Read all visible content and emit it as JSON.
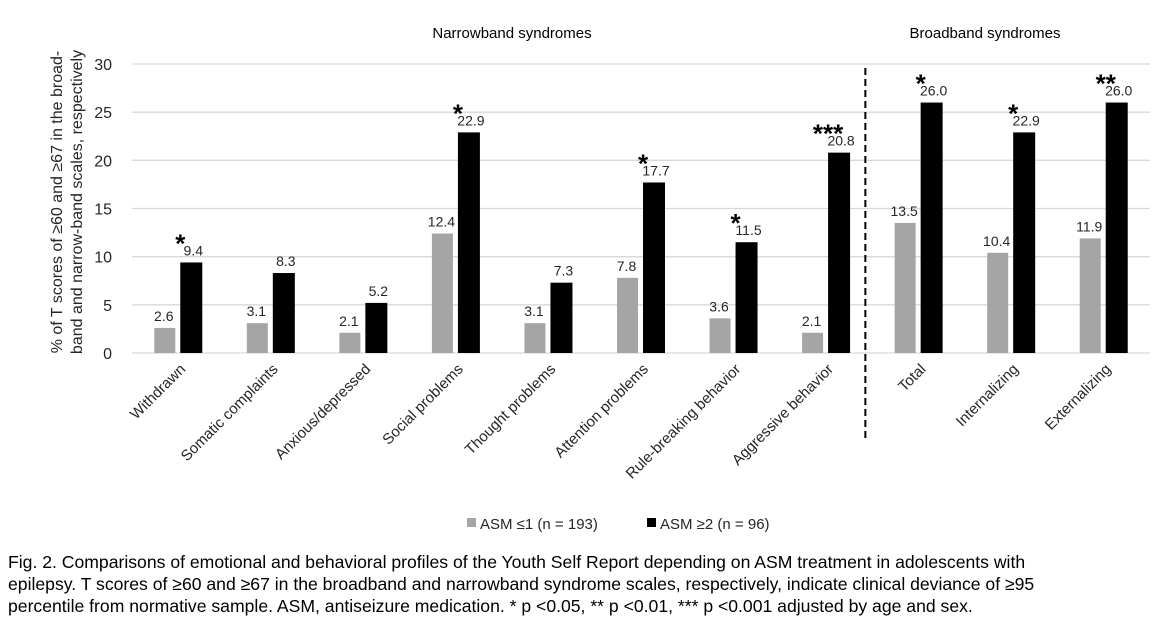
{
  "chart_data": {
    "type": "bar",
    "title": "",
    "sections": [
      {
        "label": "Narrowband syndromes",
        "categories": [
          "Withdrawn",
          "Somatic complaints",
          "Anxious/depressed",
          "Social problems",
          "Thought problems",
          "Attention problems",
          "Rule-breaking behavior",
          "Aggressive behavior"
        ]
      },
      {
        "label": "Broadband syndromes",
        "categories": [
          "Total",
          "Internalizing",
          "Externalizing"
        ]
      }
    ],
    "categories": [
      "Withdrawn",
      "Somatic complaints",
      "Anxious/depressed",
      "Social problems",
      "Thought problems",
      "Attention problems",
      "Rule-breaking behavior",
      "Aggressive behavior",
      "Total",
      "Internalizing",
      "Externalizing"
    ],
    "series": [
      {
        "name": "ASM ≤1 (n = 193)",
        "color": "#a5a5a5",
        "values": [
          2.6,
          3.1,
          2.1,
          12.4,
          3.1,
          7.8,
          3.6,
          2.1,
          13.5,
          10.4,
          11.9
        ],
        "labels": [
          "2.6",
          "3.1",
          "2.1",
          "12.4",
          "3.1",
          "7.8",
          "3.6",
          "2.1",
          "13.5",
          "10.4",
          "11.9"
        ]
      },
      {
        "name": "ASM ≥2 (n = 96)",
        "color": "#000000",
        "values": [
          9.4,
          8.3,
          5.2,
          22.9,
          7.3,
          17.7,
          11.5,
          20.8,
          26.0,
          22.9,
          26.0
        ],
        "labels": [
          "9.4",
          "8.3",
          "5.2",
          "22.9",
          "7.3",
          "17.7",
          "11.5",
          "20.8",
          "26.0",
          "22.9",
          "26.0"
        ]
      }
    ],
    "significance": [
      "*",
      "",
      "",
      "*",
      "",
      "*",
      "*",
      "***",
      "*",
      "*",
      "**"
    ],
    "xlabel": "",
    "ylabel": "% of T scores of ≥60 and ≥67 in the broad-band and narrow-band scales, respectively",
    "ylabel_lines": [
      "% of T scores of ≥60 and ≥67 in the broad-",
      "band and narrow-band scales, respectively"
    ],
    "ylim": [
      0,
      30
    ],
    "yticks": [
      0,
      5,
      10,
      15,
      20,
      25,
      30
    ],
    "grid": true,
    "legend_position": "bottom-center",
    "separator_after_category": "Aggressive behavior"
  },
  "caption": {
    "lines": [
      "Fig. 2. Comparisons of emotional and behavioral profiles of the Youth Self Report depending on ASM treatment in adolescents with",
      "epilepsy. T scores of ≥60 and ≥67 in the broadband and narrowband syndrome scales, respectively, indicate clinical deviance of ≥95",
      "percentile from normative sample. ASM, antiseizure medication. * p <0.05,  ** p <0.01, *** p <0.001 adjusted by age and sex."
    ]
  }
}
